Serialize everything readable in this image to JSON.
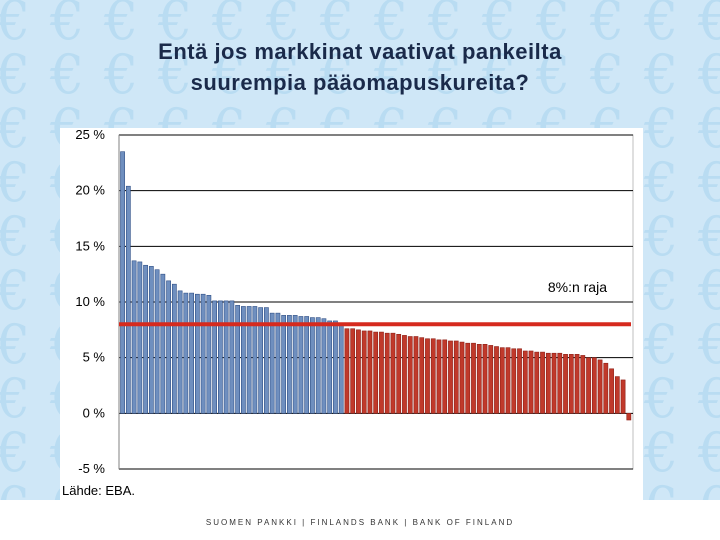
{
  "slide": {
    "title_line1": "Entä jos markkinat vaativat pankeilta",
    "title_line2": "suurempia pääomapuskureita?",
    "source": "Lähde: EBA.",
    "footer": "SUOMEN PANKKI | FINLANDS BANK | BANK OF FINLAND",
    "background_symbol": "€"
  },
  "colors": {
    "background": "#cfe7f7",
    "euro_watermark": "#b9dcf2",
    "bar_above": "#6f8fbf",
    "bar_below": "#c0392b",
    "threshold_line": "#d62a1e"
  },
  "chart_data": {
    "type": "bar",
    "title": "",
    "xlabel": "",
    "ylabel": "",
    "ylim": [
      -5,
      25
    ],
    "yticks": [
      25,
      20,
      15,
      10,
      5,
      0,
      -5
    ],
    "ytick_labels": [
      "25 %",
      "20 %",
      "15 %",
      "10 %",
      "5 %",
      "0 %",
      "-5 %"
    ],
    "grid": true,
    "threshold": {
      "value": 8,
      "label": "8%:n raja"
    },
    "values": [
      23.5,
      20.4,
      13.7,
      13.6,
      13.3,
      13.2,
      12.9,
      12.5,
      11.9,
      11.6,
      11.0,
      10.8,
      10.8,
      10.7,
      10.7,
      10.6,
      10.1,
      10.1,
      10.1,
      10.1,
      9.7,
      9.6,
      9.6,
      9.6,
      9.5,
      9.5,
      9.0,
      9.0,
      8.8,
      8.8,
      8.8,
      8.7,
      8.7,
      8.6,
      8.6,
      8.5,
      8.3,
      8.3,
      8.0,
      7.6,
      7.6,
      7.5,
      7.4,
      7.4,
      7.3,
      7.3,
      7.2,
      7.2,
      7.1,
      7.0,
      6.9,
      6.9,
      6.8,
      6.7,
      6.7,
      6.6,
      6.6,
      6.5,
      6.5,
      6.4,
      6.3,
      6.3,
      6.2,
      6.2,
      6.1,
      6.0,
      5.9,
      5.9,
      5.8,
      5.8,
      5.6,
      5.6,
      5.5,
      5.5,
      5.4,
      5.4,
      5.4,
      5.3,
      5.3,
      5.3,
      5.2,
      5.0,
      5.0,
      4.8,
      4.5,
      4.0,
      3.3,
      3.0,
      -0.6
    ]
  }
}
